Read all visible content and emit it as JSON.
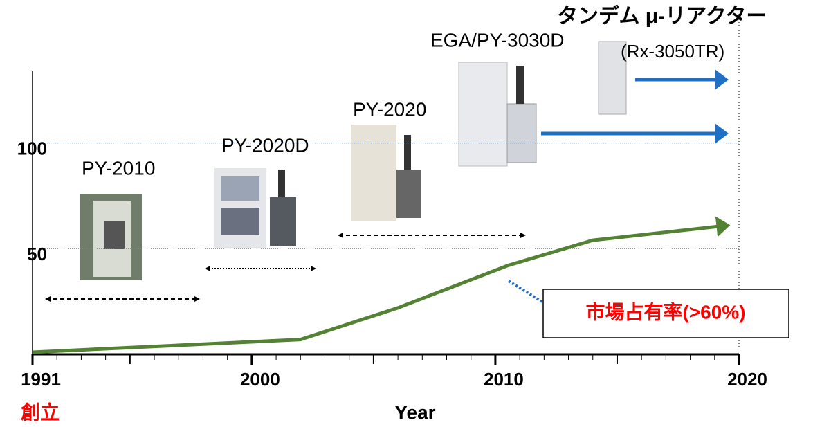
{
  "chart_data": {
    "type": "line",
    "x_label": "Year",
    "x": [
      1991,
      2002,
      2006,
      2010.5,
      2014,
      2019.5
    ],
    "series": [
      {
        "color": "#548235",
        "values": [
          1,
          7,
          22,
          42,
          54,
          61
        ]
      }
    ],
    "xlim": [
      1991,
      2020
    ],
    "xticks": [
      1991,
      2000,
      2010,
      2020
    ],
    "ylim": [
      0,
      133
    ],
    "yticks": [
      50,
      100
    ],
    "grid": true,
    "annotations": {
      "founded": "創立",
      "share": "市場占有率(>60%)"
    },
    "products": [
      "PY-2010",
      "PY-2020D",
      "PY-2020",
      "EGA/PY-3030D",
      "タンデム μ-リアクター",
      "(Rx-3050TR)"
    ]
  }
}
